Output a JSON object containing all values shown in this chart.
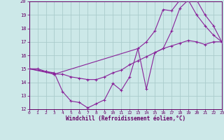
{
  "xlabel": "Windchill (Refroidissement éolien,°C)",
  "background_color": "#cce8e8",
  "grid_color": "#aacccc",
  "line_color": "#882299",
  "xlim": [
    0,
    23
  ],
  "ylim": [
    12,
    20
  ],
  "xtick_vals": [
    0,
    1,
    2,
    3,
    4,
    5,
    6,
    7,
    8,
    9,
    10,
    11,
    12,
    13,
    14,
    15,
    16,
    17,
    18,
    19,
    20,
    21,
    22,
    23
  ],
  "ytick_vals": [
    12,
    13,
    14,
    15,
    16,
    17,
    18,
    19,
    20
  ],
  "line1_x": [
    0,
    1,
    2,
    3,
    4,
    5,
    6,
    7,
    8,
    9,
    10,
    11,
    12,
    13,
    14,
    15,
    16,
    17,
    18,
    19,
    20,
    21,
    22,
    23
  ],
  "line1_y": [
    15.0,
    15.0,
    14.8,
    14.7,
    13.3,
    12.6,
    12.5,
    12.1,
    12.4,
    12.7,
    13.9,
    13.4,
    14.4,
    16.5,
    13.5,
    16.2,
    16.5,
    17.8,
    19.5,
    20.1,
    20.1,
    19.0,
    18.2,
    17.0
  ],
  "line2_x": [
    0,
    2,
    3,
    4,
    5,
    6,
    7,
    8,
    9,
    10,
    11,
    12,
    13,
    14,
    15,
    16,
    17,
    18,
    19,
    20,
    21,
    22,
    23
  ],
  "line2_y": [
    15.0,
    14.8,
    14.6,
    14.6,
    14.4,
    14.3,
    14.2,
    14.2,
    14.4,
    14.7,
    14.9,
    15.3,
    15.6,
    15.9,
    16.2,
    16.5,
    16.7,
    16.9,
    17.1,
    17.0,
    16.8,
    17.0,
    17.0
  ],
  "line3_x": [
    0,
    3,
    13,
    14,
    15,
    16,
    17,
    18,
    19,
    20,
    21,
    22,
    23
  ],
  "line3_y": [
    15.0,
    14.6,
    16.5,
    17.0,
    17.8,
    19.4,
    19.3,
    20.1,
    20.1,
    19.0,
    18.2,
    17.5,
    17.0
  ]
}
